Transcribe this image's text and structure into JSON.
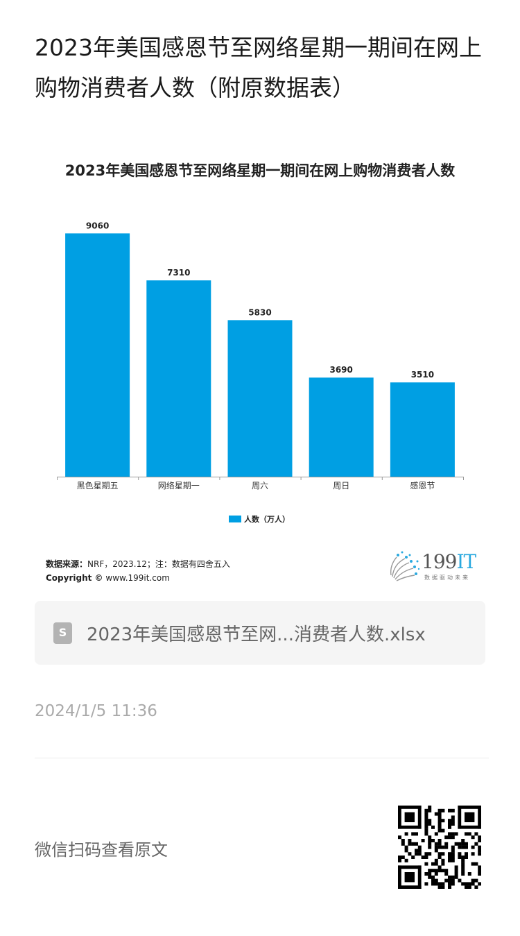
{
  "article": {
    "title": "2023年美国感恩节至网络星期一期间在网上购物消费者人数（附原数据表）",
    "timestamp": "2024/1/5 11:36",
    "qr_label": "微信扫码查看原文"
  },
  "chart_data": {
    "type": "bar",
    "title": "2023年美国感恩节至网络星期一期间在网上购物消费者人数",
    "categories": [
      "黑色星期五",
      "网络星期一",
      "周六",
      "周日",
      "感恩节"
    ],
    "series": [
      {
        "name": "人数（万人）",
        "values": [
          9060,
          7310,
          5830,
          3690,
          3510
        ],
        "color": "#009fe3"
      }
    ],
    "ylim": [
      0,
      10000
    ],
    "grid": false,
    "legend": "bottom"
  },
  "source": {
    "label": "数据来源：",
    "text": "NRF，2023.12；注：数据有四舍五入",
    "copyright_label": "Copyright ©",
    "copyright_url": "www.199it.com"
  },
  "logo": {
    "number": "199",
    "suffix": "IT",
    "tagline": "数据驱动未来",
    "accent": "#2aa9df"
  },
  "file": {
    "icon": "spreadsheet-file-icon",
    "icon_letter": "S",
    "name": "2023年美国感恩节至网...消费者人数.xlsx"
  }
}
